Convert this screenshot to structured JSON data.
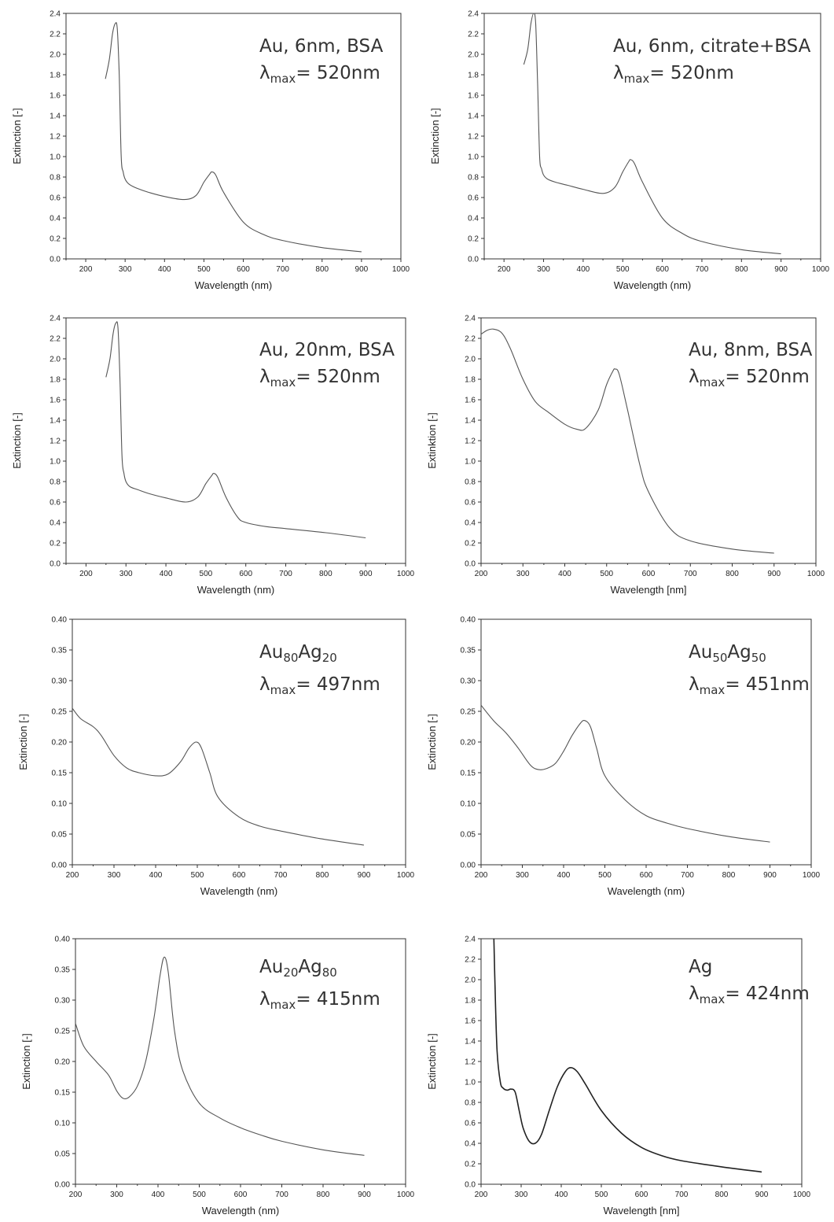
{
  "chart_data": [
    {
      "type": "line",
      "label_line1": "Au, 6nm, BSA",
      "label_line2": {
        "prefix": "λ",
        "sub": "max",
        "suffix": "= 520nm"
      },
      "xlabel": "Wavelength (nm)",
      "ylabel": "Extinction [-]",
      "xlim": [
        150,
        1000
      ],
      "ylim": [
        0,
        2.4
      ],
      "xticks": [
        "200",
        "300",
        "400",
        "500",
        "600",
        "700",
        "800",
        "900",
        "1000"
      ],
      "yticks": [
        "0.0",
        "0.2",
        "0.4",
        "0.6",
        "0.8",
        "1.0",
        "1.2",
        "1.4",
        "1.6",
        "1.8",
        "2.0",
        "2.2",
        "2.4"
      ],
      "series": [
        {
          "x": [
            250,
            260,
            268,
            275,
            280,
            285,
            290,
            295,
            300,
            310,
            330,
            360,
            400,
            450,
            480,
            500,
            515,
            520,
            530,
            550,
            600,
            650,
            700,
            800,
            900
          ],
          "y": [
            1.76,
            1.95,
            2.2,
            2.3,
            2.25,
            1.8,
            1.0,
            0.85,
            0.78,
            0.73,
            0.69,
            0.65,
            0.61,
            0.58,
            0.62,
            0.75,
            0.83,
            0.85,
            0.82,
            0.65,
            0.36,
            0.24,
            0.18,
            0.11,
            0.07
          ]
        }
      ]
    },
    {
      "type": "line",
      "label_line1": "Au, 6nm, citrate+BSA",
      "label_line2": {
        "prefix": "λ",
        "sub": "max",
        "suffix": "= 520nm"
      },
      "xlabel": "Wavelength (nm)",
      "ylabel": "Extinction [-]",
      "xlim": [
        150,
        1000
      ],
      "ylim": [
        0,
        2.4
      ],
      "xticks": [
        "200",
        "300",
        "400",
        "500",
        "600",
        "700",
        "800",
        "900",
        "1000"
      ],
      "yticks": [
        "0.0",
        "0.2",
        "0.4",
        "0.6",
        "0.8",
        "1.0",
        "1.2",
        "1.4",
        "1.6",
        "1.8",
        "2.0",
        "2.2",
        "2.4"
      ],
      "series": [
        {
          "x": [
            250,
            260,
            268,
            275,
            280,
            285,
            290,
            295,
            300,
            310,
            330,
            360,
            400,
            450,
            480,
            500,
            515,
            520,
            530,
            550,
            600,
            650,
            700,
            800,
            900
          ],
          "y": [
            1.9,
            2.05,
            2.3,
            2.4,
            2.3,
            1.7,
            1.0,
            0.88,
            0.82,
            0.78,
            0.75,
            0.72,
            0.68,
            0.64,
            0.7,
            0.85,
            0.95,
            0.97,
            0.93,
            0.75,
            0.4,
            0.25,
            0.17,
            0.09,
            0.05
          ]
        }
      ]
    },
    {
      "type": "line",
      "label_line1": "Au, 20nm, BSA",
      "label_line2": {
        "prefix": "λ",
        "sub": "max",
        "suffix": "= 520nm"
      },
      "xlabel": "Wavelength (nm)",
      "ylabel": "Extinction [-]",
      "xlim": [
        150,
        1000
      ],
      "ylim": [
        0,
        2.4
      ],
      "xticks": [
        "200",
        "300",
        "400",
        "500",
        "600",
        "700",
        "800",
        "900",
        "1000"
      ],
      "yticks": [
        "0.0",
        "0.2",
        "0.4",
        "0.6",
        "0.8",
        "1.0",
        "1.2",
        "1.4",
        "1.6",
        "1.8",
        "2.0",
        "2.2",
        "2.4"
      ],
      "series": [
        {
          "x": [
            250,
            260,
            268,
            275,
            280,
            285,
            290,
            295,
            300,
            310,
            330,
            360,
            400,
            450,
            480,
            500,
            515,
            520,
            530,
            550,
            580,
            600,
            650,
            700,
            800,
            900
          ],
          "y": [
            1.82,
            2.0,
            2.25,
            2.35,
            2.3,
            1.8,
            1.05,
            0.88,
            0.8,
            0.75,
            0.72,
            0.68,
            0.64,
            0.6,
            0.65,
            0.78,
            0.86,
            0.88,
            0.84,
            0.65,
            0.45,
            0.4,
            0.36,
            0.34,
            0.3,
            0.25
          ]
        }
      ]
    },
    {
      "type": "line",
      "label_line1": "Au, 8nm, BSA",
      "label_line2": {
        "prefix": "λ",
        "sub": "max",
        "suffix": "= 520nm"
      },
      "xlabel": "Wavelength [nm]",
      "ylabel": "Extinktion [-]",
      "xlim": [
        200,
        1000
      ],
      "ylim": [
        0,
        2.4
      ],
      "xticks": [
        "200",
        "300",
        "400",
        "500",
        "600",
        "700",
        "800",
        "900",
        "1000"
      ],
      "yticks": [
        "0.0",
        "0.2",
        "0.4",
        "0.6",
        "0.8",
        "1.0",
        "1.2",
        "1.4",
        "1.6",
        "1.8",
        "2.0",
        "2.2",
        "2.4"
      ],
      "series": [
        {
          "x": [
            200,
            215,
            230,
            250,
            270,
            300,
            330,
            360,
            400,
            430,
            450,
            480,
            500,
            515,
            520,
            530,
            550,
            580,
            600,
            650,
            700,
            800,
            900
          ],
          "y": [
            2.24,
            2.28,
            2.29,
            2.25,
            2.1,
            1.8,
            1.58,
            1.48,
            1.36,
            1.31,
            1.32,
            1.5,
            1.75,
            1.88,
            1.9,
            1.85,
            1.5,
            0.95,
            0.7,
            0.35,
            0.22,
            0.14,
            0.1
          ]
        }
      ]
    },
    {
      "type": "line",
      "label_line1": {
        "a": "Au",
        "a_sub": "80",
        "b": "Ag",
        "b_sub": "20"
      },
      "label_line2": {
        "prefix": "λ",
        "sub": "max",
        "suffix": "= 497nm"
      },
      "xlabel": "Wavelength (nm)",
      "ylabel": "Extinction [-]",
      "xlim": [
        200,
        1000
      ],
      "ylim": [
        0,
        0.4
      ],
      "xticks": [
        "200",
        "300",
        "400",
        "500",
        "600",
        "700",
        "800",
        "900",
        "1000"
      ],
      "yticks": [
        "0.00",
        "0.05",
        "0.10",
        "0.15",
        "0.20",
        "0.25",
        "0.30",
        "0.35",
        "0.40"
      ],
      "series": [
        {
          "x": [
            200,
            220,
            250,
            270,
            300,
            330,
            360,
            400,
            430,
            460,
            480,
            497,
            510,
            530,
            550,
            600,
            650,
            700,
            800,
            900
          ],
          "y": [
            0.255,
            0.238,
            0.225,
            0.21,
            0.178,
            0.158,
            0.15,
            0.145,
            0.148,
            0.168,
            0.19,
            0.2,
            0.19,
            0.15,
            0.11,
            0.078,
            0.063,
            0.055,
            0.042,
            0.032
          ]
        }
      ]
    },
    {
      "type": "line",
      "label_line1": {
        "a": "Au",
        "a_sub": "50",
        "b": "Ag",
        "b_sub": "50"
      },
      "label_line2": {
        "prefix": "λ",
        "sub": "max",
        "suffix": "= 451nm"
      },
      "xlabel": "Wavelength (nm)",
      "ylabel": "Extinction [-]",
      "xlim": [
        200,
        1000
      ],
      "ylim": [
        0,
        0.4
      ],
      "xticks": [
        "200",
        "300",
        "400",
        "500",
        "600",
        "700",
        "800",
        "900",
        "1000"
      ],
      "yticks": [
        "0.00",
        "0.05",
        "0.10",
        "0.15",
        "0.20",
        "0.25",
        "0.30",
        "0.35",
        "0.40"
      ],
      "series": [
        {
          "x": [
            200,
            230,
            260,
            290,
            320,
            340,
            360,
            380,
            400,
            420,
            440,
            451,
            465,
            480,
            500,
            550,
            600,
            650,
            700,
            800,
            900
          ],
          "y": [
            0.26,
            0.235,
            0.215,
            0.19,
            0.162,
            0.155,
            0.157,
            0.165,
            0.185,
            0.21,
            0.23,
            0.235,
            0.225,
            0.19,
            0.145,
            0.105,
            0.08,
            0.068,
            0.059,
            0.046,
            0.037
          ]
        }
      ]
    },
    {
      "type": "line",
      "label_line1": {
        "a": "Au",
        "a_sub": "20",
        "b": "Ag",
        "b_sub": "80"
      },
      "label_line2": {
        "prefix": "λ",
        "sub": "max",
        "suffix": "= 415nm"
      },
      "xlabel": "Wavelength (nm)",
      "ylabel": "Extinction [-]",
      "xlim": [
        200,
        1000
      ],
      "ylim": [
        0,
        0.4
      ],
      "xticks": [
        "200",
        "300",
        "400",
        "500",
        "600",
        "700",
        "800",
        "900",
        "1000"
      ],
      "yticks": [
        "0.00",
        "0.05",
        "0.10",
        "0.15",
        "0.20",
        "0.25",
        "0.30",
        "0.35",
        "0.40"
      ],
      "series": [
        {
          "x": [
            200,
            220,
            250,
            280,
            300,
            315,
            330,
            350,
            370,
            390,
            405,
            415,
            425,
            440,
            460,
            500,
            550,
            600,
            650,
            700,
            800,
            900
          ],
          "y": [
            0.262,
            0.225,
            0.2,
            0.178,
            0.152,
            0.14,
            0.142,
            0.16,
            0.2,
            0.27,
            0.34,
            0.37,
            0.345,
            0.25,
            0.185,
            0.132,
            0.108,
            0.092,
            0.08,
            0.07,
            0.056,
            0.047
          ]
        }
      ]
    },
    {
      "type": "line",
      "label_line1": "Ag",
      "label_line2": {
        "prefix": "λ",
        "sub": "max",
        "suffix": "= 424nm"
      },
      "xlabel": "Wavelength [nm]",
      "ylabel": "Extinction [-]",
      "xlim": [
        200,
        1000
      ],
      "ylim": [
        0,
        2.4
      ],
      "xticks": [
        "200",
        "300",
        "400",
        "500",
        "600",
        "700",
        "800",
        "900",
        "1000"
      ],
      "yticks": [
        "0.0",
        "0.2",
        "0.4",
        "0.6",
        "0.8",
        "1.0",
        "1.2",
        "1.4",
        "1.6",
        "1.8",
        "2.0",
        "2.2",
        "2.4"
      ],
      "series": [
        {
          "x": [
            232,
            235,
            240,
            248,
            255,
            265,
            275,
            285,
            295,
            305,
            320,
            335,
            350,
            370,
            390,
            410,
            424,
            440,
            460,
            500,
            550,
            600,
            650,
            700,
            800,
            900
          ],
          "y": [
            2.4,
            1.9,
            1.3,
            1.0,
            0.94,
            0.92,
            0.93,
            0.9,
            0.72,
            0.55,
            0.42,
            0.4,
            0.48,
            0.72,
            0.95,
            1.1,
            1.14,
            1.1,
            0.98,
            0.72,
            0.5,
            0.36,
            0.28,
            0.23,
            0.17,
            0.12
          ]
        }
      ]
    }
  ]
}
